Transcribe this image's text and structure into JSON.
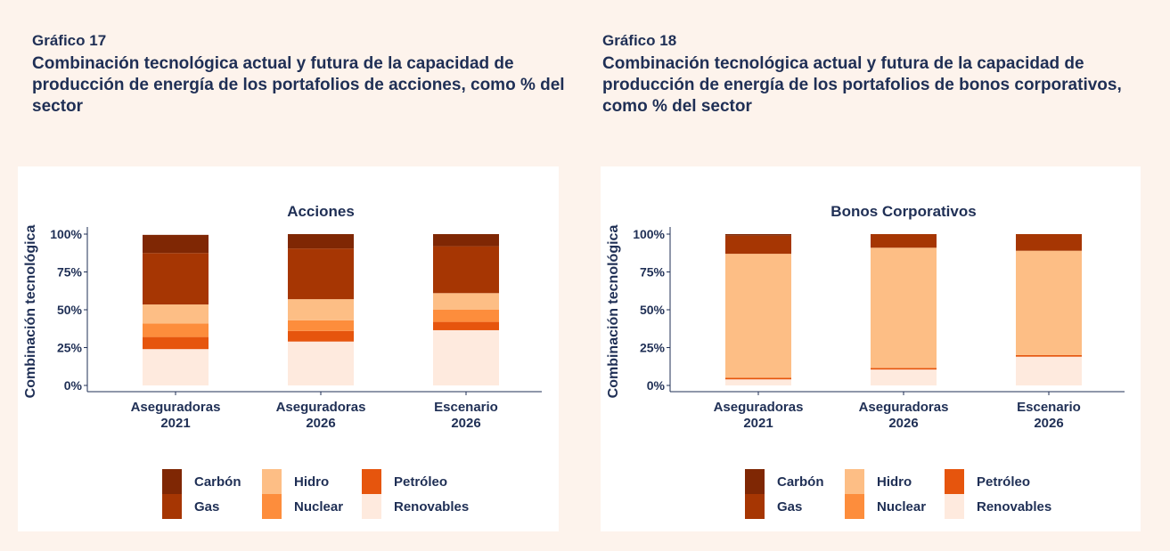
{
  "chart_data": [
    {
      "type": "stacked_bar",
      "figure_label": "Gráfico 17",
      "caption": "Combinación tecnológica actual y futura de la capacidad de producción de energía de los portafolios de acciones, como % del sector",
      "title": "Acciones",
      "ylabel": "Combinación tecnológica",
      "categories": [
        [
          "Aseguradoras",
          "2021"
        ],
        [
          "Aseguradoras",
          "2026"
        ],
        [
          "Escenario",
          "2026"
        ]
      ],
      "ylim": [
        0,
        100
      ],
      "yticks": [
        {
          "value": 0,
          "label": "0%"
        },
        {
          "value": 25,
          "label": "25%"
        },
        {
          "value": 50,
          "label": "50%"
        },
        {
          "value": 75,
          "label": "75%"
        },
        {
          "value": 100,
          "label": "100%"
        }
      ],
      "series": [
        {
          "name": "Carbón",
          "color": "#7f2704",
          "values": [
            12,
            9.5,
            8
          ]
        },
        {
          "name": "Gas",
          "color": "#a63603",
          "values": [
            34,
            33.5,
            31
          ]
        },
        {
          "name": "Hidro",
          "color": "#fdbe85",
          "values": [
            12.5,
            14,
            11
          ]
        },
        {
          "name": "Nuclear",
          "color": "#fd8d3c",
          "values": [
            9,
            7,
            8
          ]
        },
        {
          "name": "Petróleo",
          "color": "#e6550d",
          "values": [
            8,
            7,
            5.5
          ]
        },
        {
          "name": "Renovables",
          "color": "#feeade",
          "values": [
            24,
            29,
            36.5
          ]
        }
      ]
    },
    {
      "type": "stacked_bar",
      "figure_label": "Gráfico 18",
      "caption": "Combinación tecnológica actual y futura de la capacidad de producción de energía de los portafolios de bonos corporativos, como % del sector",
      "title": "Bonos Corporativos",
      "ylabel": "Combinación tecnológica",
      "categories": [
        [
          "Aseguradoras",
          "2021"
        ],
        [
          "Aseguradoras",
          "2026"
        ],
        [
          "Escenario",
          "2026"
        ]
      ],
      "ylim": [
        0,
        100
      ],
      "yticks": [
        {
          "value": 0,
          "label": "0%"
        },
        {
          "value": 25,
          "label": "25%"
        },
        {
          "value": 50,
          "label": "50%"
        },
        {
          "value": 75,
          "label": "75%"
        },
        {
          "value": 100,
          "label": "100%"
        }
      ],
      "series": [
        {
          "name": "Carbón",
          "color": "#7f2704",
          "values": [
            1,
            0,
            0
          ]
        },
        {
          "name": "Gas",
          "color": "#a63603",
          "values": [
            12,
            9,
            11
          ]
        },
        {
          "name": "Hidro",
          "color": "#fdbe85",
          "values": [
            82,
            79.5,
            69
          ]
        },
        {
          "name": "Nuclear",
          "color": "#fd8d3c",
          "values": [
            0,
            0,
            0
          ]
        },
        {
          "name": "Petróleo",
          "color": "#e6550d",
          "values": [
            1,
            1,
            1
          ]
        },
        {
          "name": "Renovables",
          "color": "#feeade",
          "values": [
            4,
            10.5,
            19
          ]
        }
      ]
    }
  ]
}
